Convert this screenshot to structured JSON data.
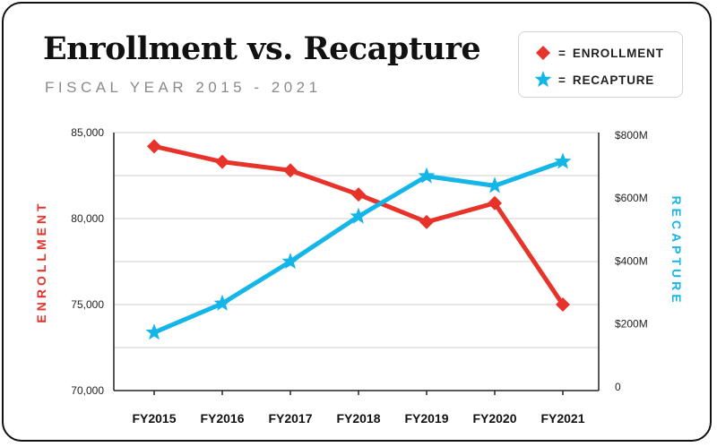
{
  "chart_data": {
    "type": "line",
    "title": "Enrollment vs. Recapture",
    "subtitle": "FISCAL YEAR 2015 - 2021",
    "categories": [
      "FY2015",
      "FY2016",
      "FY2017",
      "FY2018",
      "FY2019",
      "FY2020",
      "FY2021"
    ],
    "series": [
      {
        "name": "ENROLLMENT",
        "axis": "left",
        "color": "#e8332a",
        "marker": "diamond",
        "values": [
          84200,
          83300,
          82800,
          81400,
          79800,
          80900,
          75000
        ]
      },
      {
        "name": "RECAPTURE",
        "axis": "right",
        "color": "#14b6e8",
        "marker": "star",
        "values": [
          180,
          270,
          400,
          540,
          665,
          635,
          710
        ]
      }
    ],
    "ylabel_left": "ENROLLMENT",
    "ylabel_right": "RECAPTURE",
    "ylim_left": [
      70000,
      85000
    ],
    "ylim_right": [
      0,
      800
    ],
    "yticks_left": [
      "85,000",
      "80,000",
      "75,000",
      "70,000"
    ],
    "yticks_right": [
      "$800M",
      "$600M",
      "$400M",
      "$200M",
      "0"
    ],
    "grid": true,
    "legend_position": "top-right",
    "legend": [
      {
        "symbol": "diamond",
        "eq": "=",
        "label": "ENROLLMENT"
      },
      {
        "symbol": "star",
        "eq": "=",
        "label": "RECAPTURE"
      }
    ]
  }
}
